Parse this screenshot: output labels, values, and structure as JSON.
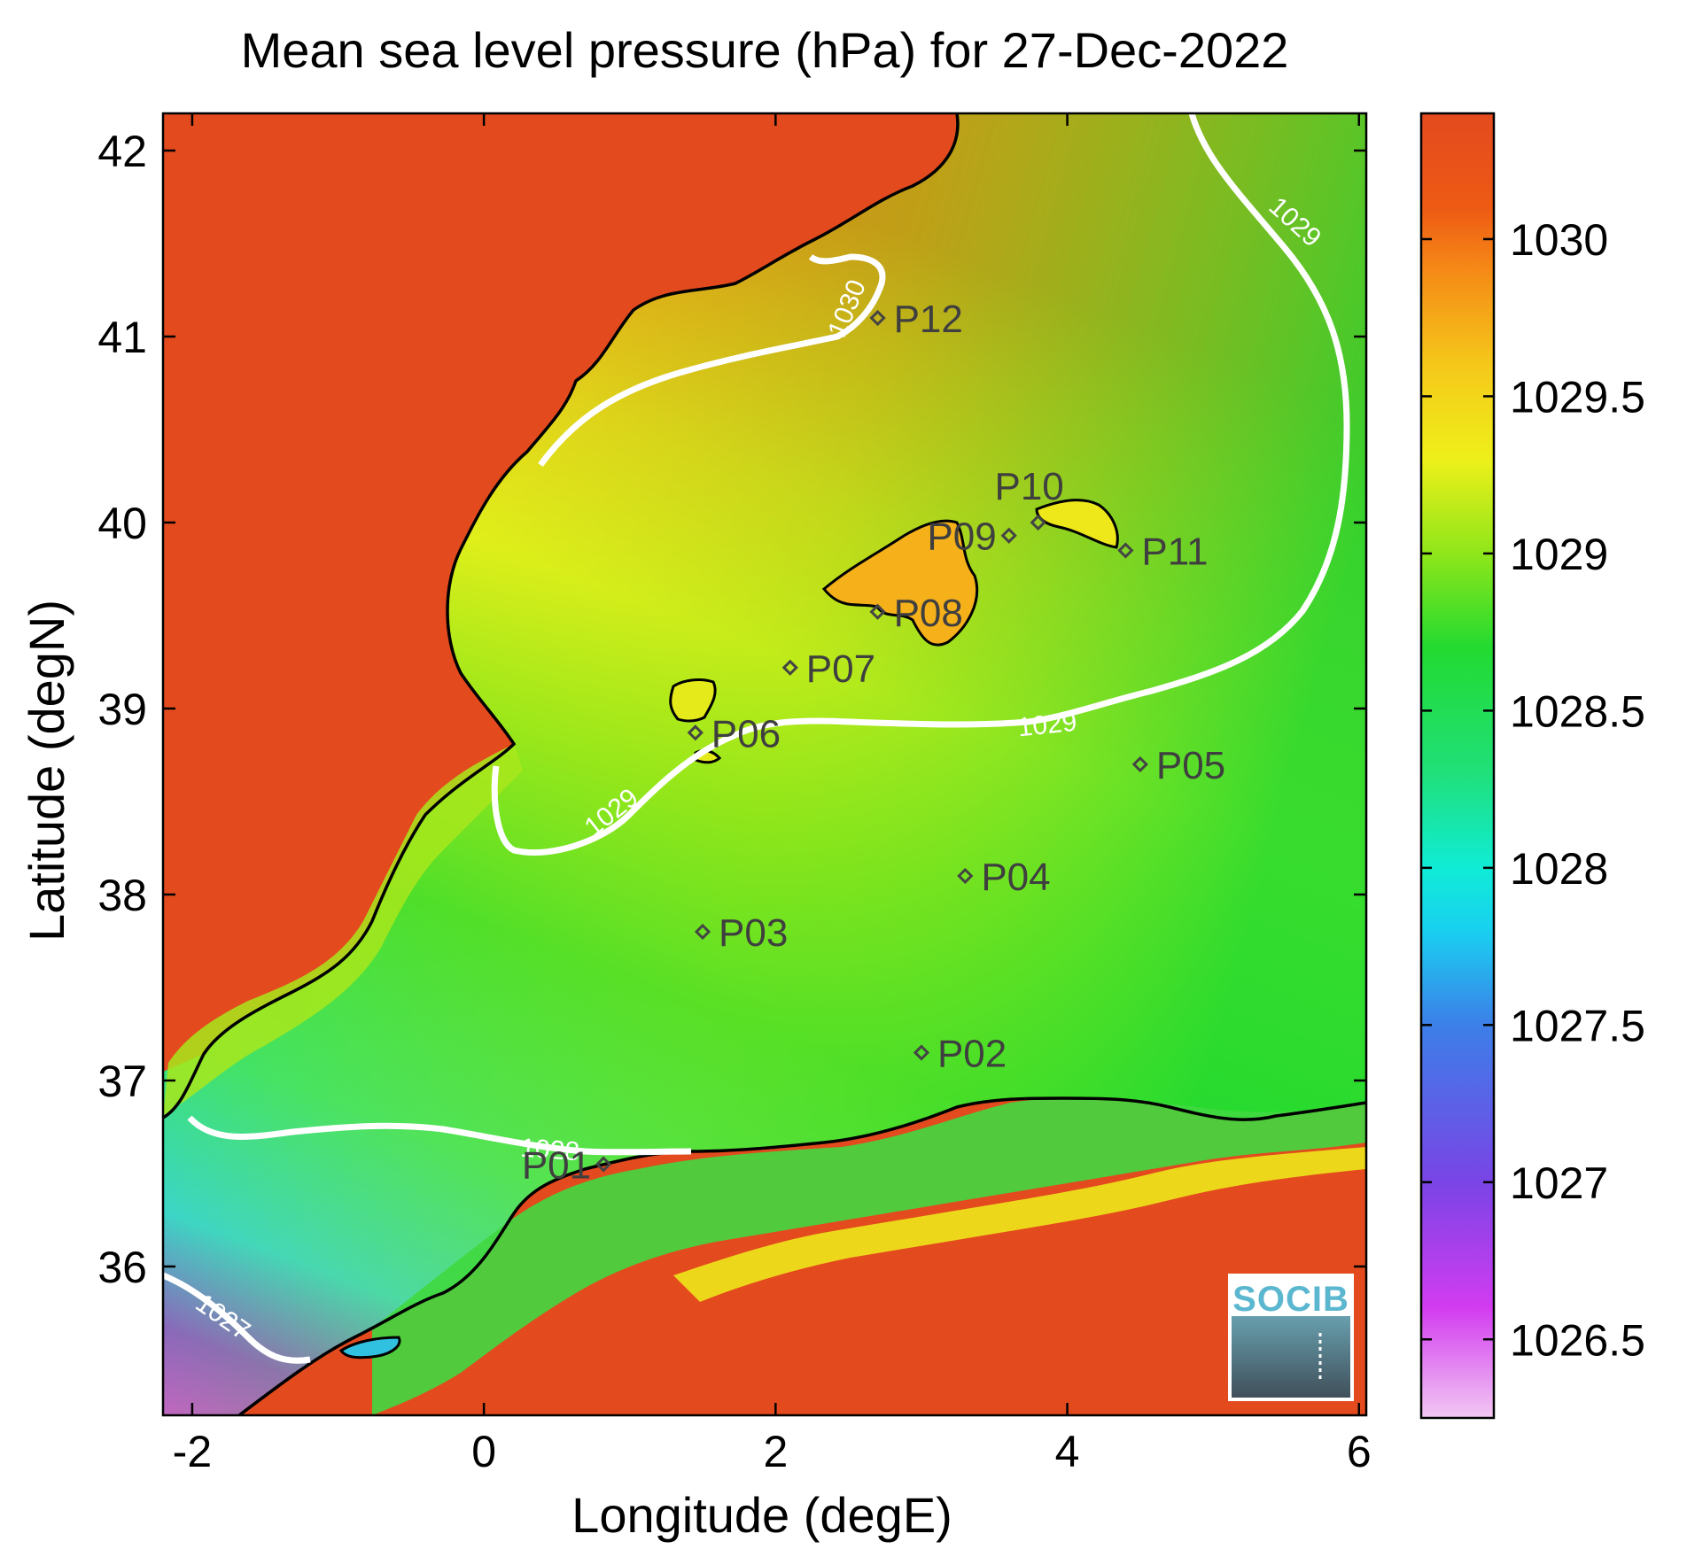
{
  "title": "Mean sea level pressure (hPa) for 27-Dec-2022",
  "map": {
    "xlabel": "Longitude (degE)",
    "ylabel": "Latitude (degN)",
    "xlim": [
      -2.2,
      6.05
    ],
    "ylim": [
      35.2,
      42.2
    ],
    "x_ticks": [
      -2,
      0,
      2,
      4,
      6
    ],
    "y_ticks": [
      36,
      37,
      38,
      39,
      40,
      41,
      42
    ],
    "colors": {
      "land_high": "#e34a1e",
      "contour": "#ffffff",
      "coastline": "#000000",
      "station": "#444444"
    }
  },
  "colorbar": {
    "range": [
      1026.25,
      1030.4
    ],
    "ticks": [
      1026.5,
      1027,
      1027.5,
      1028,
      1028.5,
      1029,
      1029.5,
      1030
    ],
    "labels": [
      "1026.5",
      "1027",
      "1027.5",
      "1028",
      "1028.5",
      "1029",
      "1029.5",
      "1030"
    ],
    "colormap": [
      [
        1026.25,
        "#f2c8f2"
      ],
      [
        1026.6,
        "#d23cf0"
      ],
      [
        1027.0,
        "#7a44e6"
      ],
      [
        1027.5,
        "#3c7fe8"
      ],
      [
        1027.8,
        "#19d0f0"
      ],
      [
        1028.0,
        "#10ecd6"
      ],
      [
        1028.3,
        "#20e07a"
      ],
      [
        1028.7,
        "#23da30"
      ],
      [
        1029.0,
        "#8fe61a"
      ],
      [
        1029.3,
        "#eef01a"
      ],
      [
        1029.6,
        "#f5c81a"
      ],
      [
        1029.9,
        "#f58a16"
      ],
      [
        1030.1,
        "#ee5a14"
      ],
      [
        1030.4,
        "#e34a1e"
      ]
    ]
  },
  "contours": [
    {
      "label": "1030"
    },
    {
      "label": "1029"
    },
    {
      "label": "1029"
    },
    {
      "label": "1028"
    },
    {
      "label": "1027"
    }
  ],
  "stations": [
    {
      "name": "P01",
      "lon": 0.82,
      "lat": 36.55
    },
    {
      "name": "P02",
      "lon": 3.0,
      "lat": 37.15
    },
    {
      "name": "P03",
      "lon": 1.5,
      "lat": 37.8
    },
    {
      "name": "P04",
      "lon": 3.3,
      "lat": 38.1
    },
    {
      "name": "P05",
      "lon": 4.5,
      "lat": 38.7
    },
    {
      "name": "P06",
      "lon": 1.45,
      "lat": 38.87
    },
    {
      "name": "P07",
      "lon": 2.1,
      "lat": 39.22
    },
    {
      "name": "P08",
      "lon": 2.7,
      "lat": 39.52
    },
    {
      "name": "P09",
      "lon": 3.6,
      "lat": 39.93
    },
    {
      "name": "P10",
      "lon": 3.8,
      "lat": 40.0
    },
    {
      "name": "P11",
      "lon": 4.4,
      "lat": 39.85
    },
    {
      "name": "P12",
      "lon": 2.7,
      "lat": 41.1
    }
  ],
  "logo": {
    "text": "SOCIB"
  }
}
